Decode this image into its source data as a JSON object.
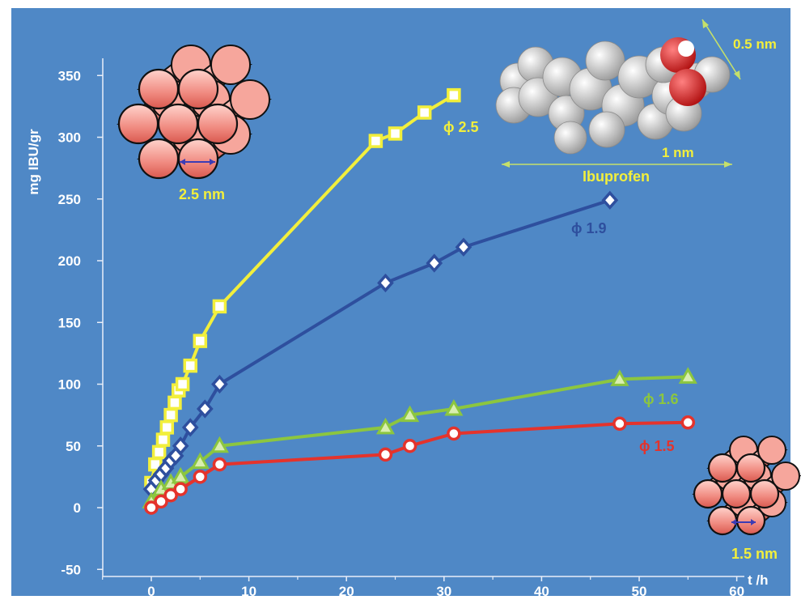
{
  "chart_data": {
    "type": "line",
    "xlabel": "t /h",
    "ylabel": "mg IBU/gr",
    "xlim": [
      -5,
      60
    ],
    "ylim": [
      -50,
      370
    ],
    "xticks": [
      0,
      10,
      20,
      30,
      40,
      50,
      60
    ],
    "yticks": [
      -50,
      0,
      50,
      100,
      150,
      200,
      250,
      300,
      350
    ],
    "x_tick_labels": [
      "0",
      "10",
      "20",
      "30",
      "40",
      "50",
      "60"
    ],
    "y_tick_labels": [
      "-50",
      "0",
      "50",
      "100",
      "150",
      "200",
      "250",
      "300",
      "350"
    ],
    "series": [
      {
        "name": "ϕ 2.5",
        "color": "#f2ef3c",
        "marker": "square",
        "x": [
          0,
          0.4,
          0.8,
          1.2,
          1.6,
          2.0,
          2.4,
          2.8,
          3.2,
          4.0,
          5.0,
          7.0,
          23.0,
          25.0,
          28.0,
          31.0
        ],
        "y": [
          20,
          35,
          45,
          55,
          65,
          75,
          85,
          95,
          100,
          115,
          135,
          163,
          297,
          303,
          320,
          334
        ]
      },
      {
        "name": "ϕ 1.9",
        "color": "#2e4f9e",
        "marker": "diamond",
        "x": [
          0,
          0.5,
          1.0,
          1.5,
          2.0,
          2.5,
          3.0,
          4.0,
          5.5,
          7.0,
          24.0,
          29.0,
          32.0,
          47.0
        ],
        "y": [
          15,
          22,
          27,
          32,
          38,
          42,
          50,
          65,
          80,
          100,
          182,
          198,
          211,
          249
        ]
      },
      {
        "name": "ϕ 1.6",
        "color": "#8cc63f",
        "marker": "triangle",
        "x": [
          0,
          1.0,
          2.0,
          3.0,
          5.0,
          7.0,
          24.0,
          26.5,
          31.0,
          48.0,
          55.0
        ],
        "y": [
          5,
          15,
          20,
          25,
          37,
          50,
          65,
          75,
          80,
          104,
          106
        ]
      },
      {
        "name": "ϕ 1.5",
        "color": "#e4332c",
        "marker": "circle",
        "x": [
          0,
          1.0,
          2.0,
          3.0,
          5.0,
          7.0,
          24.0,
          26.5,
          31.0,
          48.0,
          55.0
        ],
        "y": [
          0,
          5,
          10,
          15,
          25,
          35,
          43,
          50,
          60,
          68,
          69
        ]
      }
    ]
  },
  "annotations": {
    "large_pore": "2.5 nm",
    "small_pore": "1.5 nm",
    "molecule_name": "Ibuprofen",
    "molecule_length": "1 nm",
    "molecule_width": "0.5 nm"
  },
  "colors": {
    "background": "#4f88c6",
    "axis": "#e8eef8",
    "label_yellow": "#f2ef3c",
    "cylinder": "#f08a80",
    "molecule": "#d8d8d8",
    "oxygen": "#d42027"
  }
}
